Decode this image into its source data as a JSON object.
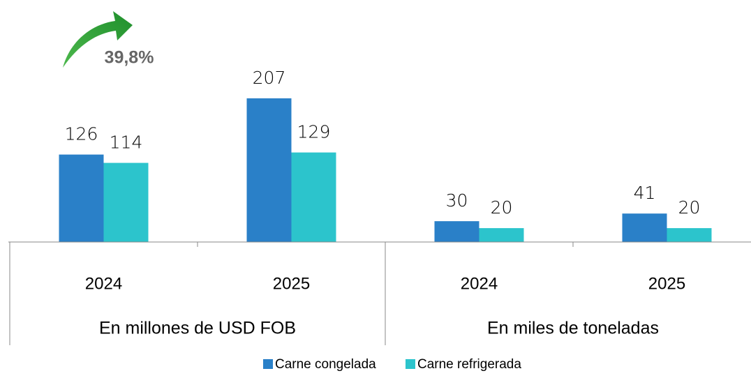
{
  "chart_data": {
    "type": "bar",
    "categories": [
      "2024",
      "2025",
      "2024",
      "2025"
    ],
    "groups": [
      "En millones de USD FOB",
      "En miles de toneladas"
    ],
    "series": [
      {
        "name": "Carne congelada",
        "color": "#2a80c8",
        "values": [
          126,
          207,
          30,
          41
        ]
      },
      {
        "name": "Carne refrigerada",
        "color": "#2cc4cc",
        "values": [
          114,
          129,
          20,
          20
        ]
      }
    ],
    "annotation": "39,8%"
  }
}
